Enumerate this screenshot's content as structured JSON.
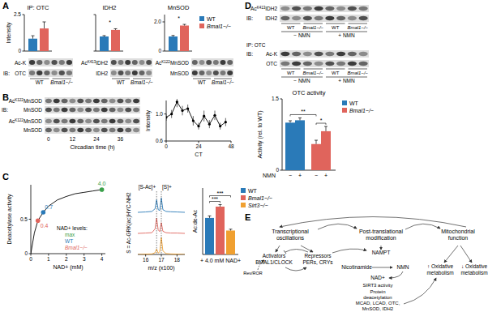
{
  "figure": {
    "panel_labels": [
      "A",
      "B",
      "C",
      "D",
      "E"
    ],
    "blots": [
      {
        "ib": "IB:",
        "rows": [
          {
            "text": "Ac-K"
          },
          {
            "text": "OTC"
          }
        ],
        "groups": [
          "WT",
          "Bmal1−/−"
        ]
      },
      {
        "rows": [
          {
            "pre": "Ac",
            "sup": "K413",
            "text": "IDH2"
          },
          {
            "text": "IDH2"
          }
        ],
        "groups": [
          "WT",
          "Bmal1−/−"
        ]
      },
      {
        "rows": [
          {
            "pre": "Ac",
            "sup": "K122",
            "text": "MnSOD"
          },
          {
            "text": "MnSOD"
          }
        ],
        "groups": [
          "WT",
          "Bmal1−/−"
        ]
      },
      {
        "ib": "IB:",
        "rows": [
          {
            "pre": "Ac",
            "sup": "K122",
            "text": "MnSOD"
          },
          {
            "text": "MnSOD"
          },
          {
            "pre": "Ac",
            "sup": "K122",
            "text": "MnSOD"
          },
          {
            "text": "MnSOD"
          }
        ],
        "lane_labels": [
          "0",
          "12",
          "24",
          "36"
        ],
        "x_label": "Circadian time (h)"
      },
      {
        "ib": "IB:",
        "rows": [
          {
            "pre": "Ac",
            "sup": "K413",
            "text": "IDH2"
          },
          {
            "text": "IDH2"
          }
        ],
        "groups": [
          "WT",
          "Bmal1−/−",
          "WT",
          "Bmal1−/−"
        ],
        "treatments": [
          "− NMN",
          "+ NMN"
        ]
      },
      {
        "ip": "IP: OTC",
        "ib": "IB:",
        "rows": [
          {
            "text": "Ac-K"
          },
          {
            "text": "OTC"
          }
        ],
        "groups": [
          "WT",
          "Bmal1−/−",
          "WT",
          "Bmal1−/−"
        ],
        "treatments": [
          "− NMN",
          "+ NMN"
        ]
      }
    ]
  },
  "chart_data": [
    {
      "type": "bar",
      "title": "IP: OTC",
      "y_label": "Intensity",
      "categories": [
        null,
        null
      ],
      "values": [
        0.85,
        1.55
      ],
      "errors": [
        0.2,
        0.45
      ],
      "colors": [
        "#2a7ab8",
        "#e0645c"
      ],
      "ylim": [
        0,
        2.5
      ],
      "yticks": [
        0,
        2.5
      ]
    },
    {
      "type": "bar",
      "title": "IDH2",
      "categories": [
        null,
        null
      ],
      "values": [
        1.0,
        1.45
      ],
      "errors": [
        0.06,
        0.08
      ],
      "colors": [
        "#2a7ab8",
        "#e0645c"
      ],
      "ylim": [
        0,
        2.5
      ],
      "yticks": [
        0,
        2.5
      ],
      "tick_labels": false,
      "annotations": [
        "*"
      ]
    },
    {
      "type": "bar",
      "title": "MnSOD",
      "categories": [
        null
      ],
      "series": [
        {
          "name": "WT",
          "color": "#2a7ab8",
          "values": [
            1.0
          ],
          "errors": [
            0.07
          ]
        },
        {
          "name": "Bmal1−/−",
          "color": "#e0645c",
          "values": [
            1.75
          ],
          "errors": [
            0.08
          ]
        }
      ],
      "ylim": [
        0,
        2.5
      ],
      "yticks": [
        0,
        {
          "value": 2,
          "label": "2.0"
        }
      ],
      "legend": "right",
      "annotations": [
        "*"
      ]
    },
    {
      "type": "line",
      "y_label": "Intensity",
      "x_label": "CT",
      "x": [
        0,
        4,
        8,
        12,
        16,
        20,
        24,
        28,
        32,
        36,
        40,
        44
      ],
      "values": [
        0.95,
        1.0,
        1.18,
        1.05,
        1.08,
        0.9,
        0.82,
        0.97,
        0.85,
        0.98,
        0.82,
        0.88
      ],
      "errors": [
        0.05,
        0.06,
        0.08,
        0.07,
        0.06,
        0.07,
        0.05,
        0.08,
        0.06,
        0.07,
        0.05,
        0.06
      ],
      "xlim": [
        0,
        48
      ],
      "xticks": [
        0,
        24,
        48
      ],
      "ylim": [
        0.6,
        1.2
      ],
      "yticks": [
        0.6,
        {
          "value": 1,
          "label": "1.0"
        }
      ],
      "color": "#000000",
      "marker": "circle"
    },
    {
      "type": "line",
      "y_label": "Deacetylase activity",
      "x_label": "NAD+ (mM)",
      "x": [
        0,
        0.2,
        0.4,
        0.7,
        1,
        1.5,
        2,
        2.5,
        3,
        3.5,
        4
      ],
      "values": [
        0,
        0.3,
        0.48,
        0.6,
        0.69,
        0.78,
        0.83,
        0.87,
        0.89,
        0.91,
        0.93
      ],
      "xlim": [
        0,
        4.2
      ],
      "xticks": [
        0,
        1,
        2,
        3,
        4
      ],
      "ylim": [
        0,
        1
      ],
      "yticks": [
        0,
        0.5
      ],
      "color": "#000000",
      "legend_title": "NAD+ levels:",
      "highlights": [
        {
          "name": "Bmal1−/−",
          "x": 0.4,
          "value": 0.48,
          "label": "0.4",
          "color": "#e0645c"
        },
        {
          "name": "WT",
          "x": 0.7,
          "value": 0.6,
          "label": "0.7",
          "color": "#2a7ab8"
        },
        {
          "name": "max",
          "x": 4,
          "value": 0.93,
          "label": "4.0",
          "color": "#3aa04a"
        }
      ]
    },
    {
      "type": "line",
      "title": "S = Ac-GRK(ac)HYC-NH2",
      "x_label": "m/z (x100)",
      "x": [
        15.5,
        16.0,
        16.4,
        16.6,
        16.7,
        16.8,
        16.9,
        17.0,
        17.1,
        17.3,
        17.6,
        18.0,
        18.5
      ],
      "series": [
        {
          "color": "#2a7ab8",
          "values": [
            0,
            0.02,
            0.05,
            0.2,
            0.7,
            0.15,
            0.1,
            0.8,
            0.15,
            0.05,
            0.03,
            0.02,
            0
          ]
        },
        {
          "color": "#e0645c",
          "values": [
            0,
            0.02,
            0.04,
            0.25,
            0.85,
            0.2,
            0.1,
            0.6,
            0.12,
            0.04,
            0.02,
            0.02,
            0
          ]
        },
        {
          "color": "#f0a030",
          "values": [
            0,
            0.02,
            0.03,
            0.1,
            0.3,
            0.08,
            0.15,
            0.95,
            0.2,
            0.05,
            0.03,
            0.02,
            0
          ]
        }
      ],
      "xlim": [
        15.5,
        18.5
      ],
      "xticks": [
        16,
        17,
        18
      ],
      "ylim": [
        0,
        1
      ],
      "tick_labels": "x",
      "peak_labels": [
        {
          "x": 16.7,
          "label": "[S-Ac]+"
        },
        {
          "x": 17.0,
          "label": "[S]+"
        }
      ]
    },
    {
      "type": "bar",
      "y_label": "Ac:de-Ac",
      "x_label": "+ 4.0 mM NAD+",
      "categories": [
        null
      ],
      "series": [
        {
          "name": "WT",
          "color": "#2a7ab8",
          "values": [
            0.55
          ],
          "errors": [
            0.03
          ]
        },
        {
          "name": "Bmal1−/−",
          "color": "#e0645c",
          "values": [
            0.72
          ],
          "errors": [
            0.03
          ]
        },
        {
          "name": "Sirt3−/−",
          "color": "#f0a030",
          "values": [
            0.36
          ],
          "errors": [
            0.02
          ]
        }
      ],
      "ylim": [
        0,
        1
      ],
      "tick_labels": false,
      "legend": "right",
      "annotations": [
        "***",
        "***"
      ]
    },
    {
      "type": "bar",
      "title": "OTC activity",
      "y_label": "Activity (rel. to WT)",
      "x_label": "NMN",
      "categories": [
        "−",
        "+"
      ],
      "series": [
        {
          "name": "WT",
          "color": "#2a7ab8",
          "values": [
            1.0,
            1.05
          ],
          "errors": [
            0.04,
            0.05
          ]
        },
        {
          "name": "Bmal1−/−",
          "color": "#e0645c",
          "values": [
            0.55,
            0.82
          ],
          "errors": [
            0.08,
            0.1
          ]
        }
      ],
      "ylim": [
        0,
        1.5
      ],
      "yticks": [
        0,
        1.5
      ],
      "legend": "right",
      "annotations": [
        "**",
        "*"
      ]
    }
  ],
  "diagram": {
    "headers": [
      [
        "Transcriptional",
        "oscillations"
      ],
      [
        "Post-translational",
        "modification"
      ],
      [
        "Mitochondrial",
        "function"
      ]
    ],
    "nodes": [
      {
        "lines": [
          "Activators",
          "BMAL1/CLOCK"
        ]
      },
      {
        "lines": [
          "Repressors",
          "PERs, CRYs"
        ]
      },
      {
        "lines": [
          "Rev/ROR"
        ]
      },
      {
        "lines": [
          "NAMPT"
        ]
      },
      {
        "lines": [
          "Nicotinamide"
        ]
      },
      {
        "lines": [
          "NMN"
        ]
      },
      {
        "lines": [
          "NAD+"
        ]
      },
      {
        "lines": [
          "SIRT3 activity"
        ]
      },
      {
        "lines": [
          "Protein",
          "deacetylation"
        ]
      },
      {
        "lines": [
          "MCAD, LCAD, OTC,",
          "MnSOD, IDH2"
        ]
      },
      {
        "lines": [
          "↑ Oxidative",
          "metabolism"
        ]
      },
      {
        "lines": [
          "↓ Oxidative",
          "metabolism"
        ]
      }
    ]
  }
}
